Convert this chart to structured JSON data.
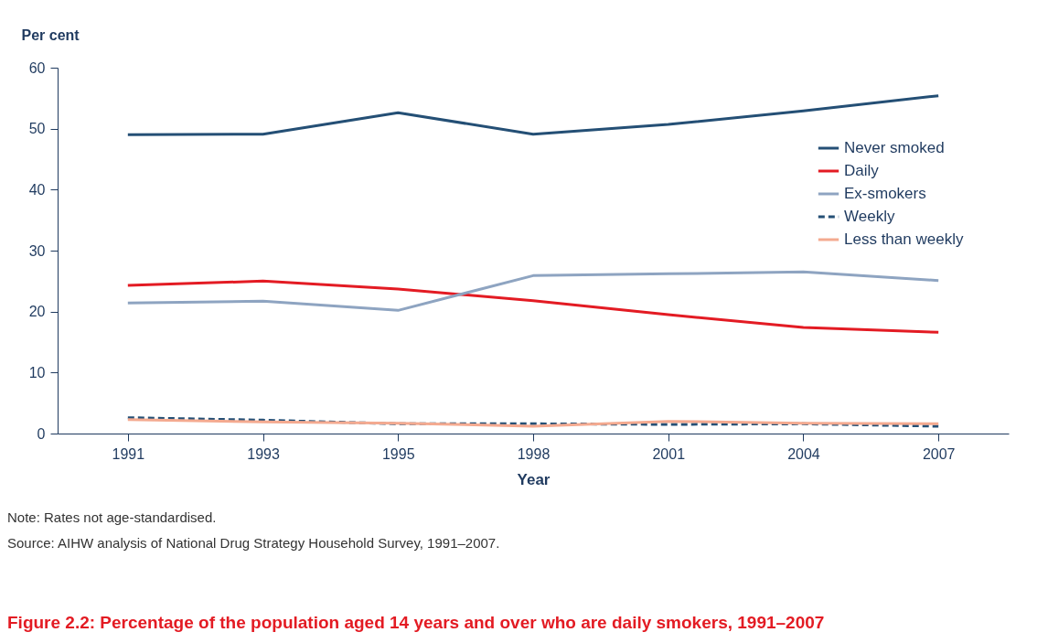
{
  "chart_data": {
    "type": "line",
    "title": "Figure 2.2: Percentage of the population aged 14 years and over who are daily smokers, 1991–2007",
    "xlabel": "Year",
    "ylabel": "Per cent",
    "categories": [
      "1991",
      "1993",
      "1995",
      "1998",
      "2001",
      "2004",
      "2007"
    ],
    "series": [
      {
        "name": "Never smoked",
        "color": "#244f75",
        "line_style": "solid",
        "values": [
          49.0,
          49.1,
          52.6,
          49.1,
          50.7,
          52.9,
          55.4
        ]
      },
      {
        "name": "Daily",
        "color": "#e31b23",
        "line_style": "solid",
        "values": [
          24.3,
          25.0,
          23.7,
          21.8,
          19.5,
          17.4,
          16.6
        ]
      },
      {
        "name": "Ex-smokers",
        "color": "#8ea4c1",
        "line_style": "solid",
        "values": [
          21.4,
          21.7,
          20.2,
          25.9,
          26.2,
          26.5,
          25.1
        ]
      },
      {
        "name": "Weekly",
        "color": "#244f75",
        "line_style": "dashed",
        "values": [
          2.6,
          2.2,
          1.6,
          1.6,
          1.5,
          1.6,
          1.2
        ]
      },
      {
        "name": "Less than weekly",
        "color": "#f4aa90",
        "line_style": "solid",
        "values": [
          2.3,
          1.9,
          1.7,
          1.2,
          2.0,
          1.7,
          1.6
        ]
      }
    ],
    "ylim": [
      0,
      60
    ],
    "yticks": [
      0,
      10,
      20,
      30,
      40,
      50,
      60
    ],
    "grid": false,
    "legend": "top right",
    "marker": "none",
    "annotations": [
      "Note: Rates not age-standardised.",
      "Source: AIHW analysis of National Drug Strategy Household Survey, 1991–2007."
    ]
  }
}
